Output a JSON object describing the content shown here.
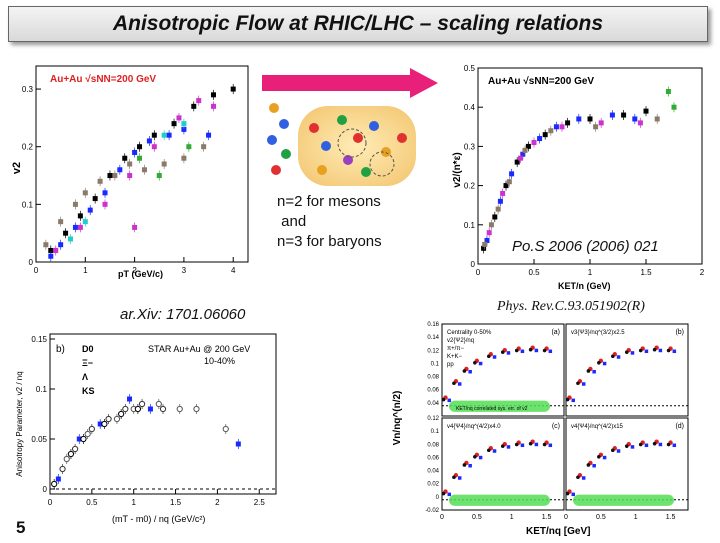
{
  "slide": {
    "title": "Anisotropic Flow  at RHIC/LHC – scaling relations",
    "text_mesons": "n=2 for mesons",
    "text_and": " and",
    "text_baryons": "n=3 for baryons",
    "ref_pos": "Po.S 2006 (2006) 021",
    "ref_arxiv": "ar.Xiv: 1701.06060",
    "ref_prc": "Phys. Rev.C.93.051902(R)",
    "slide_number": "5"
  },
  "colors": {
    "arrow": "#e8207a",
    "green_band": "#55dd55",
    "blue": "#1a2aff",
    "magenta": "#cc33cc"
  },
  "chart_data": [
    {
      "id": "c1",
      "type": "scatter",
      "legend": "Au+Au √sNN=200 GeV",
      "xlabel": "pT (GeV/c)",
      "ylabel": "v2",
      "xlim": [
        0,
        4.3
      ],
      "ylim": [
        0,
        0.34
      ],
      "xticks": [
        "0",
        "1",
        "2",
        "3",
        "4"
      ],
      "yticks": [
        "0",
        "0.1",
        "0.2",
        "0.3"
      ],
      "series": [
        {
          "color": "#000000",
          "points": [
            [
              0.3,
              0.02
            ],
            [
              0.6,
              0.05
            ],
            [
              0.9,
              0.08
            ],
            [
              1.2,
              0.11
            ],
            [
              1.5,
              0.15
            ],
            [
              1.8,
              0.18
            ],
            [
              2.1,
              0.2
            ],
            [
              2.4,
              0.22
            ],
            [
              2.8,
              0.24
            ],
            [
              3.2,
              0.27
            ],
            [
              3.6,
              0.29
            ],
            [
              4.0,
              0.3
            ]
          ]
        },
        {
          "color": "#1a2aff",
          "points": [
            [
              0.3,
              0.01
            ],
            [
              0.5,
              0.03
            ],
            [
              0.8,
              0.06
            ],
            [
              1.1,
              0.09
            ],
            [
              1.4,
              0.12
            ],
            [
              1.7,
              0.16
            ],
            [
              2.0,
              0.19
            ],
            [
              2.3,
              0.21
            ],
            [
              2.7,
              0.22
            ],
            [
              3.0,
              0.23
            ],
            [
              3.5,
              0.22
            ]
          ]
        },
        {
          "color": "#cc33cc",
          "points": [
            [
              0.4,
              0.02
            ],
            [
              0.9,
              0.06
            ],
            [
              1.4,
              0.1
            ],
            [
              1.9,
              0.15
            ],
            [
              2.4,
              0.2
            ],
            [
              2.9,
              0.25
            ],
            [
              3.3,
              0.28
            ],
            [
              3.6,
              0.27
            ],
            [
              2.0,
              0.06
            ]
          ]
        },
        {
          "color": "#8b7a6a",
          "points": [
            [
              0.2,
              0.03
            ],
            [
              0.5,
              0.07
            ],
            [
              0.8,
              0.1
            ],
            [
              1.0,
              0.12
            ],
            [
              1.3,
              0.14
            ],
            [
              1.6,
              0.15
            ],
            [
              1.9,
              0.17
            ],
            [
              2.2,
              0.16
            ],
            [
              2.6,
              0.17
            ],
            [
              3.0,
              0.18
            ],
            [
              3.4,
              0.2
            ]
          ]
        },
        {
          "color": "#22cccc",
          "points": [
            [
              0.7,
              0.04
            ],
            [
              1.0,
              0.07
            ],
            [
              2.6,
              0.22
            ],
            [
              3.0,
              0.24
            ]
          ]
        },
        {
          "color": "#33aa33",
          "points": [
            [
              2.1,
              0.18
            ],
            [
              2.5,
              0.15
            ],
            [
              3.1,
              0.2
            ]
          ]
        }
      ]
    },
    {
      "id": "c2",
      "type": "scatter",
      "legend": "Au+Au √sNN=200 GeV",
      "xlabel": "KET/n (GeV)",
      "ylabel": "v2/(n*ε)",
      "xlim": [
        0,
        2
      ],
      "ylim": [
        0,
        0.5
      ],
      "xticks": [
        "0",
        "0.5",
        "1",
        "1.5",
        "2"
      ],
      "yticks": [
        "0",
        "0.1",
        "0.2",
        "0.3",
        "0.4",
        "0.5"
      ],
      "series": [
        {
          "color": "#000000",
          "points": [
            [
              0.05,
              0.04
            ],
            [
              0.15,
              0.12
            ],
            [
              0.25,
              0.2
            ],
            [
              0.35,
              0.26
            ],
            [
              0.45,
              0.3
            ],
            [
              0.6,
              0.33
            ],
            [
              0.8,
              0.36
            ],
            [
              1.0,
              0.37
            ],
            [
              1.3,
              0.38
            ],
            [
              1.5,
              0.39
            ]
          ]
        },
        {
          "color": "#1a2aff",
          "points": [
            [
              0.08,
              0.06
            ],
            [
              0.2,
              0.16
            ],
            [
              0.3,
              0.23
            ],
            [
              0.4,
              0.28
            ],
            [
              0.55,
              0.32
            ],
            [
              0.7,
              0.35
            ],
            [
              0.9,
              0.37
            ],
            [
              1.2,
              0.38
            ],
            [
              1.4,
              0.37
            ]
          ]
        },
        {
          "color": "#cc33cc",
          "points": [
            [
              0.1,
              0.08
            ],
            [
              0.22,
              0.18
            ],
            [
              0.38,
              0.27
            ],
            [
              0.5,
              0.31
            ],
            [
              0.75,
              0.35
            ],
            [
              1.1,
              0.36
            ],
            [
              1.45,
              0.36
            ]
          ]
        },
        {
          "color": "#8b7a6a",
          "points": [
            [
              0.06,
              0.05
            ],
            [
              0.12,
              0.1
            ],
            [
              0.18,
              0.14
            ],
            [
              0.28,
              0.21
            ],
            [
              0.42,
              0.29
            ],
            [
              0.65,
              0.34
            ],
            [
              1.05,
              0.35
            ],
            [
              1.6,
              0.37
            ]
          ]
        },
        {
          "color": "#33aa33",
          "points": [
            [
              1.75,
              0.4
            ],
            [
              1.7,
              0.44
            ]
          ]
        }
      ]
    },
    {
      "id": "c3",
      "type": "scatter",
      "legend_title": "STAR  Au+Au @ 200 GeV",
      "legend_centrality": "10-40%",
      "panel_label": "b)",
      "legend_entries": [
        "D0",
        "Ξ−",
        "Λ",
        "KS"
      ],
      "xlabel": "(mT - m0) / nq (GeV/c²)",
      "ylabel": "Anisotropy Parameter, v2 / nq",
      "xlim": [
        0,
        2.7
      ],
      "ylim": [
        -0.005,
        0.155
      ],
      "xticks": [
        "0",
        "0.5",
        "1",
        "1.5",
        "2",
        "2.5"
      ],
      "yticks": [
        "0",
        "0.05",
        "0.1",
        "0.15"
      ],
      "series": [
        {
          "color": "#1a2aff",
          "points": [
            [
              0.1,
              0.01
            ],
            [
              0.35,
              0.05
            ],
            [
              0.6,
              0.065
            ],
            [
              0.95,
              0.09
            ],
            [
              1.2,
              0.08
            ],
            [
              2.25,
              0.045
            ]
          ]
        },
        {
          "color": "#333333",
          "points": [
            [
              0.15,
              0.02
            ],
            [
              0.3,
              0.04
            ],
            [
              0.5,
              0.06
            ],
            [
              0.7,
              0.07
            ],
            [
              0.9,
              0.08
            ],
            [
              1.1,
              0.085
            ],
            [
              1.35,
              0.08
            ]
          ]
        },
        {
          "color": "#555555",
          "points": [
            [
              0.2,
              0.03
            ],
            [
              0.45,
              0.055
            ],
            [
              0.8,
              0.07
            ],
            [
              1.0,
              0.08
            ],
            [
              1.3,
              0.085
            ],
            [
              1.55,
              0.08
            ],
            [
              1.75,
              0.08
            ],
            [
              2.1,
              0.06
            ]
          ]
        },
        {
          "color": "#000000",
          "points": [
            [
              0.05,
              0.005
            ],
            [
              0.25,
              0.035
            ],
            [
              0.4,
              0.05
            ],
            [
              0.65,
              0.065
            ],
            [
              0.85,
              0.075
            ],
            [
              1.05,
              0.08
            ]
          ]
        }
      ]
    },
    {
      "id": "c4",
      "type": "scatter",
      "xlabel": "KET/nq [GeV]",
      "ylabel": "Vn/nq^(n/2)",
      "panels": [
        {
          "label": "(a)",
          "legend": [
            "Centrality 0-50%",
            "v2{Ψ2}/nq",
            "π+/π−",
            "K+K−",
            "pp"
          ],
          "band": "KET/nq correlated sys. err. of v2"
        },
        {
          "label": "(b)",
          "legend": [
            "v3{Ψ3}/nq^(3/2)x2.5"
          ]
        },
        {
          "label": "(c)",
          "legend": [
            "v4{Ψ4}/nq^(4/2)x4.0"
          ]
        },
        {
          "label": "(d)",
          "legend": [
            "v4{Ψ4}/nq^(4/2)x15"
          ]
        }
      ],
      "xlim": [
        0,
        1.75
      ],
      "ylim": [
        -0.02,
        0.16
      ],
      "xticks": [
        "0",
        "0.5",
        "1",
        "1.5"
      ],
      "yticks_top": [
        "0.04",
        "0.06",
        "0.08",
        "0.1",
        "0.12",
        "0.14",
        "0.16"
      ],
      "yticks_bottom": [
        "-0.02",
        "0",
        "0.02",
        "0.04",
        "0.06",
        "0.08",
        "0.1",
        "0.12"
      ],
      "curve": [
        [
          0.05,
          0.01
        ],
        [
          0.2,
          0.03
        ],
        [
          0.35,
          0.045
        ],
        [
          0.5,
          0.055
        ],
        [
          0.7,
          0.063
        ],
        [
          0.9,
          0.068
        ],
        [
          1.1,
          0.07
        ],
        [
          1.3,
          0.071
        ],
        [
          1.5,
          0.07
        ]
      ]
    }
  ]
}
